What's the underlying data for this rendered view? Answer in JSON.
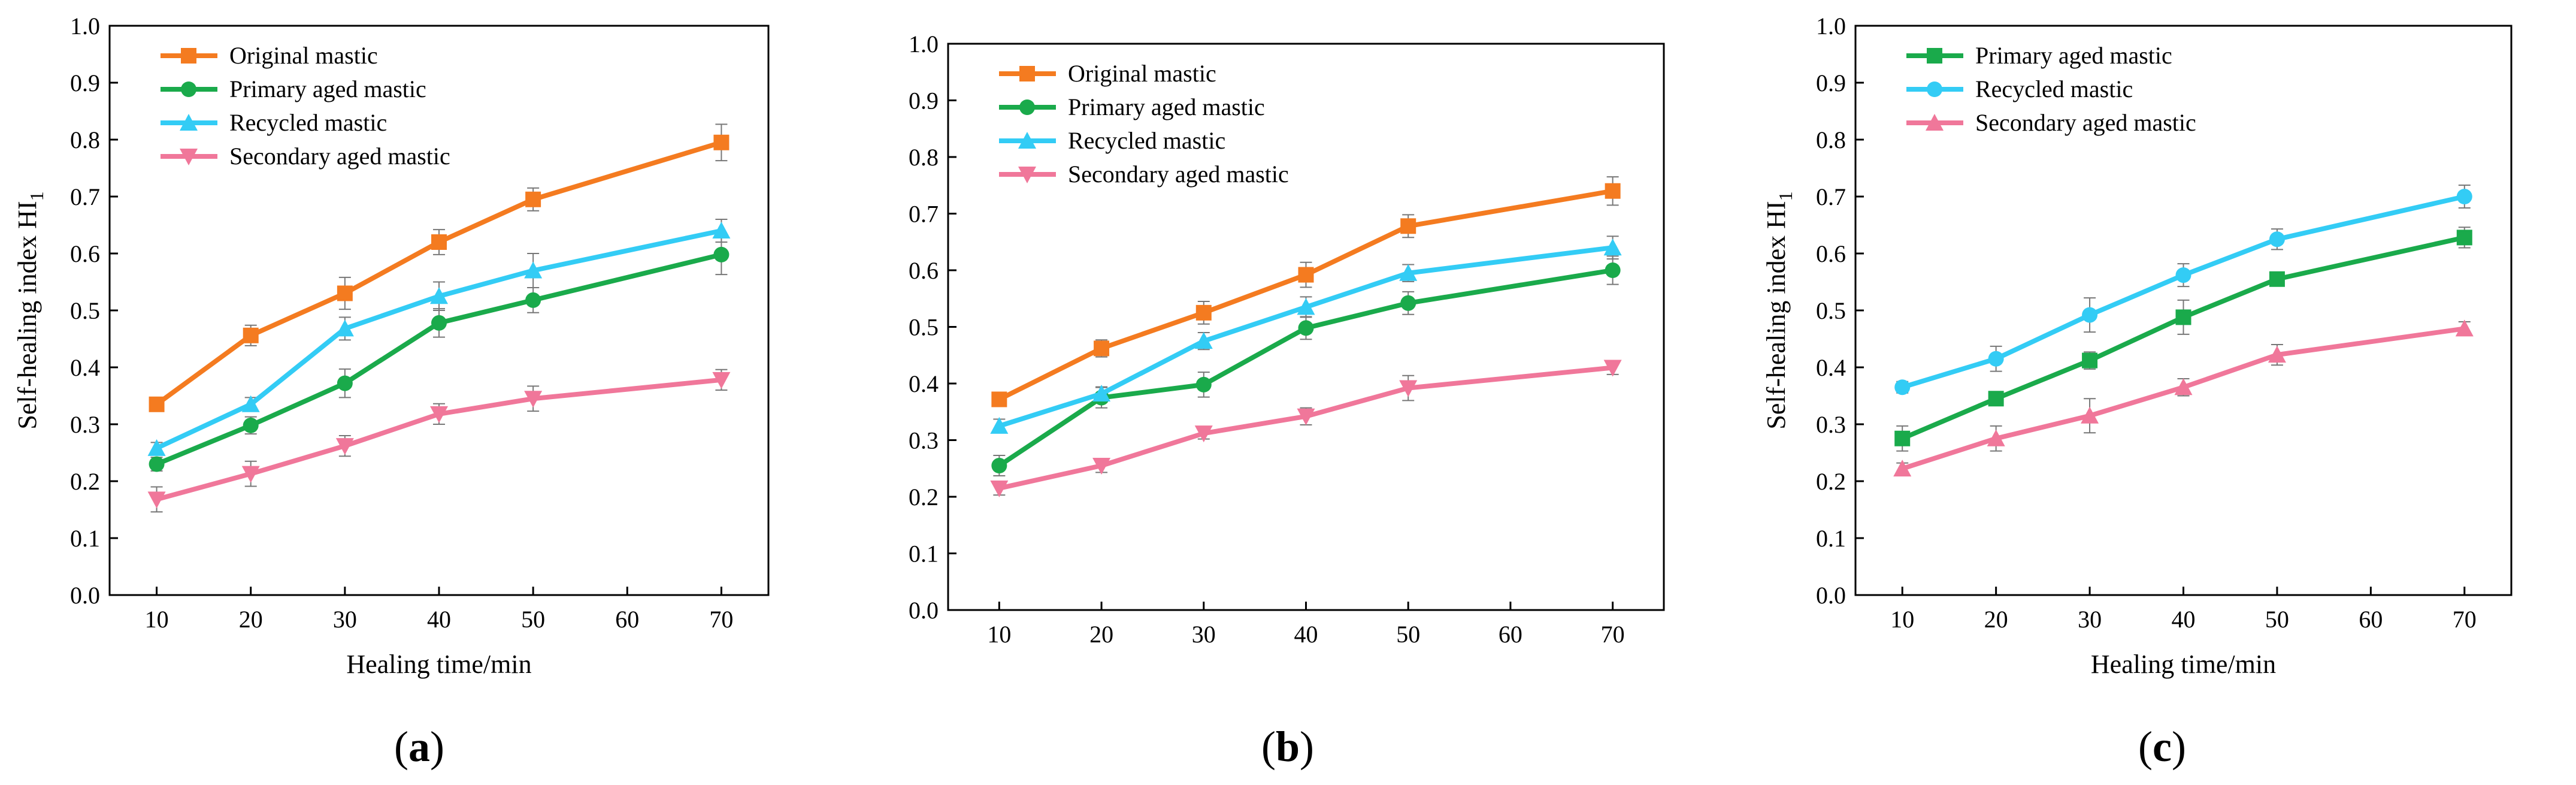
{
  "figure": {
    "panels": [
      "(a)",
      "(b)",
      "(c)"
    ],
    "panel_letters": [
      "a",
      "b",
      "c"
    ]
  },
  "chart_data": [
    {
      "type": "line",
      "panel_label": "(a)",
      "xlabel": "Healing time/min",
      "ylabel": "Self-healing index HI1",
      "ylabel_main": "Self-healing index HI",
      "ylabel_sub": "1",
      "xlim": [
        5,
        75
      ],
      "ylim": [
        0,
        1.0
      ],
      "xticks": [
        "10",
        "20",
        "30",
        "40",
        "50",
        "60",
        "70"
      ],
      "yticks": [
        "0.0",
        "0.1",
        "0.2",
        "0.3",
        "0.4",
        "0.5",
        "0.6",
        "0.7",
        "0.8",
        "0.9",
        "1.0"
      ],
      "legend_position": "top-left",
      "series": [
        {
          "name": "Original mastic",
          "color": "#f47b20",
          "marker": "square",
          "x": [
            10,
            20,
            30,
            40,
            50,
            70
          ],
          "values": [
            0.335,
            0.456,
            0.53,
            0.62,
            0.695,
            0.795
          ],
          "errors": [
            0.012,
            0.018,
            0.028,
            0.022,
            0.02,
            0.032
          ]
        },
        {
          "name": "Primary aged mastic",
          "color": "#1aaa4b",
          "marker": "circle",
          "x": [
            10,
            20,
            30,
            40,
            50,
            70
          ],
          "values": [
            0.23,
            0.298,
            0.372,
            0.478,
            0.518,
            0.598
          ],
          "errors": [
            0.012,
            0.015,
            0.025,
            0.025,
            0.022,
            0.035
          ]
        },
        {
          "name": "Recycled mastic",
          "color": "#33ccf5",
          "marker": "triangle-up",
          "x": [
            10,
            20,
            30,
            40,
            50,
            70
          ],
          "values": [
            0.258,
            0.335,
            0.468,
            0.525,
            0.57,
            0.64
          ],
          "errors": [
            0.01,
            0.012,
            0.02,
            0.025,
            0.03,
            0.02
          ]
        },
        {
          "name": "Secondary aged mastic",
          "color": "#f0779a",
          "marker": "triangle-down",
          "x": [
            10,
            20,
            30,
            40,
            50,
            70
          ],
          "values": [
            0.168,
            0.213,
            0.262,
            0.318,
            0.345,
            0.378
          ],
          "errors": [
            0.022,
            0.022,
            0.018,
            0.018,
            0.022,
            0.018
          ]
        }
      ]
    },
    {
      "type": "line",
      "panel_label": "(b)",
      "xlabel": "",
      "ylabel": "",
      "xlim": [
        5,
        75
      ],
      "ylim": [
        0,
        1.0
      ],
      "xticks": [
        "10",
        "20",
        "30",
        "40",
        "50",
        "60",
        "70"
      ],
      "yticks": [
        "0.0",
        "0.1",
        "0.2",
        "0.3",
        "0.4",
        "0.5",
        "0.6",
        "0.7",
        "0.8",
        "0.9",
        "1.0"
      ],
      "legend_position": "top-left",
      "series": [
        {
          "name": "Original mastic",
          "color": "#f47b20",
          "marker": "square",
          "x": [
            10,
            20,
            30,
            40,
            50,
            70
          ],
          "values": [
            0.372,
            0.462,
            0.525,
            0.592,
            0.678,
            0.74
          ],
          "errors": [
            0.01,
            0.015,
            0.02,
            0.022,
            0.02,
            0.025
          ]
        },
        {
          "name": "Primary aged mastic",
          "color": "#1aaa4b",
          "marker": "circle",
          "x": [
            10,
            20,
            30,
            40,
            50,
            70
          ],
          "values": [
            0.255,
            0.375,
            0.398,
            0.498,
            0.542,
            0.6
          ],
          "errors": [
            0.018,
            0.018,
            0.022,
            0.02,
            0.02,
            0.025
          ]
        },
        {
          "name": "Recycled mastic",
          "color": "#33ccf5",
          "marker": "triangle-up",
          "x": [
            10,
            20,
            30,
            40,
            50,
            70
          ],
          "values": [
            0.325,
            0.382,
            0.475,
            0.535,
            0.595,
            0.64
          ],
          "errors": [
            0.012,
            0.012,
            0.015,
            0.018,
            0.015,
            0.02
          ]
        },
        {
          "name": "Secondary aged mastic",
          "color": "#f0779a",
          "marker": "triangle-down",
          "x": [
            10,
            20,
            30,
            40,
            50,
            70
          ],
          "values": [
            0.215,
            0.255,
            0.312,
            0.342,
            0.392,
            0.428
          ],
          "errors": [
            0.012,
            0.012,
            0.01,
            0.015,
            0.022,
            0.012
          ]
        }
      ]
    },
    {
      "type": "line",
      "panel_label": "(c)",
      "xlabel": "Healing time/min",
      "ylabel": "Self-healing index HI1",
      "ylabel_main": "Self-healing index HI",
      "ylabel_sub": "1",
      "xlim": [
        5,
        75
      ],
      "ylim": [
        0,
        1.0
      ],
      "xticks": [
        "10",
        "20",
        "30",
        "40",
        "50",
        "60",
        "70"
      ],
      "yticks": [
        "0.0",
        "0.1",
        "0.2",
        "0.3",
        "0.4",
        "0.5",
        "0.6",
        "0.7",
        "0.8",
        "0.9",
        "1.0"
      ],
      "legend_position": "top-left",
      "series": [
        {
          "name": "Primary aged mastic",
          "color": "#1aaa4b",
          "marker": "square",
          "x": [
            10,
            20,
            30,
            40,
            50,
            70
          ],
          "values": [
            0.275,
            0.345,
            0.412,
            0.488,
            0.555,
            0.628
          ],
          "errors": [
            0.022,
            0.012,
            0.015,
            0.03,
            0.012,
            0.018
          ]
        },
        {
          "name": "Recycled mastic",
          "color": "#33ccf5",
          "marker": "circle",
          "x": [
            10,
            20,
            30,
            40,
            50,
            70
          ],
          "values": [
            0.365,
            0.415,
            0.492,
            0.562,
            0.625,
            0.7
          ],
          "errors": [
            0.01,
            0.022,
            0.03,
            0.02,
            0.018,
            0.02
          ]
        },
        {
          "name": "Secondary aged mastic",
          "color": "#f0779a",
          "marker": "triangle-up",
          "x": [
            10,
            20,
            30,
            40,
            50,
            70
          ],
          "values": [
            0.222,
            0.275,
            0.315,
            0.365,
            0.422,
            0.468
          ],
          "errors": [
            0.01,
            0.022,
            0.03,
            0.015,
            0.018,
            0.012
          ]
        }
      ]
    }
  ]
}
